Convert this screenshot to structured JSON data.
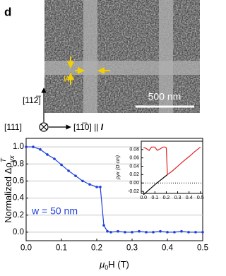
{
  "figure": {
    "panel_label": "d",
    "scale_bar": "500 nm",
    "width_label": "w",
    "dir_up": "[112̅]",
    "dir_out": "[111]",
    "dir_right": "[11̅0] || ",
    "current": "I"
  },
  "chart_data": [
    {
      "type": "line",
      "ylabel": {
        "main": "Normalized Δρ",
        "sub": "yx",
        "sup": "T"
      },
      "xlabel": {
        "main": "μ",
        "sub": "0",
        "rest": "H (T)"
      },
      "annotation": "w = 50 nm",
      "x": [
        0,
        0.02,
        0.04,
        0.06,
        0.08,
        0.1,
        0.12,
        0.14,
        0.16,
        0.18,
        0.2,
        0.21,
        0.22,
        0.23,
        0.24,
        0.26,
        0.28,
        0.3,
        0.32,
        0.34,
        0.36,
        0.38,
        0.4,
        0.42,
        0.44,
        0.46,
        0.48,
        0.5
      ],
      "values": [
        1.0,
        1.0,
        0.97,
        0.91,
        0.86,
        0.79,
        0.72,
        0.66,
        0.6,
        0.56,
        0.53,
        0.53,
        0.08,
        0.01,
        0.0,
        0.01,
        0.0,
        0.0,
        0.01,
        0.0,
        0.0,
        0.01,
        0.0,
        0.0,
        0.01,
        0.0,
        0.0,
        0.0
      ],
      "color": "#1f3fdc",
      "xlim": [
        0,
        0.5
      ],
      "ylim": [
        -0.1,
        1.1
      ],
      "xticks": [
        {
          "value": 0,
          "label": "0.0"
        },
        0.1,
        0.2,
        0.3,
        0.4,
        0.5
      ],
      "yticks": [
        {
          "value": 0,
          "label": "0.0"
        },
        0.2,
        0.4,
        0.6,
        0.8,
        {
          "value": 1,
          "label": "1.0"
        }
      ],
      "grid": true
    },
    {
      "type": "line",
      "ylabel": "ρyx (Ω cm)",
      "series": [
        {
          "color": "#000000",
          "x": [
            0,
            0.1,
            0.21
          ],
          "values": [
            -0.028,
            -0.004,
            0.02
          ]
        },
        {
          "color": "#e02020",
          "x": [
            0,
            0.02,
            0.05,
            0.07,
            0.1,
            0.12,
            0.15,
            0.17,
            0.19,
            0.2,
            0.21,
            0.25,
            0.3,
            0.35,
            0.4,
            0.45,
            0.5
          ],
          "values": [
            0.085,
            0.083,
            0.078,
            0.086,
            0.086,
            0.078,
            0.082,
            0.086,
            0.086,
            0.084,
            0.02,
            0.028,
            0.04,
            0.052,
            0.063,
            0.075,
            0.086
          ]
        }
      ],
      "hlines": [
        0
      ],
      "xlim": [
        -0.02,
        0.52
      ],
      "ylim": [
        -0.025,
        0.1
      ],
      "xticks": [
        {
          "value": 0,
          "label": "0.0"
        },
        0.1,
        0.2,
        0.3,
        0.4,
        0.5
      ],
      "yticks": [
        -0.02,
        {
          "value": 0,
          "label": "0.00"
        },
        0.02,
        0.04,
        0.06,
        0.08
      ]
    }
  ]
}
